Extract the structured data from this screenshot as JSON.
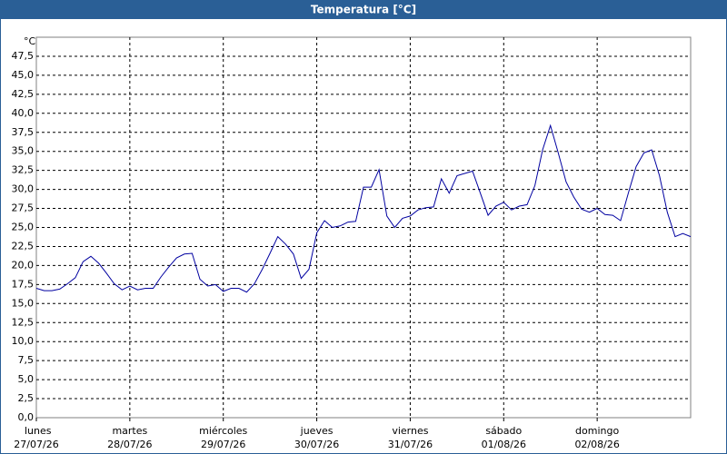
{
  "chart_data": {
    "type": "line",
    "title": "Temperatura [°C]",
    "y_unit": "°C",
    "ylim": [
      0,
      50
    ],
    "yticks": [
      {
        "value": 0,
        "label": "0,0"
      },
      {
        "value": 2.5,
        "label": "2,5"
      },
      {
        "value": 5,
        "label": "5,0"
      },
      {
        "value": 7.5,
        "label": "7,5"
      },
      {
        "value": 10,
        "label": "10,0"
      },
      {
        "value": 12.5,
        "label": "12,5"
      },
      {
        "value": 15,
        "label": "15,0"
      },
      {
        "value": 17.5,
        "label": "17,5"
      },
      {
        "value": 20,
        "label": "20,0"
      },
      {
        "value": 22.5,
        "label": "22,5"
      },
      {
        "value": 25,
        "label": "25,0"
      },
      {
        "value": 27.5,
        "label": "27,5"
      },
      {
        "value": 30,
        "label": "30,0"
      },
      {
        "value": 32.5,
        "label": "32,5"
      },
      {
        "value": 35,
        "label": "35,0"
      },
      {
        "value": 37.5,
        "label": "37,5"
      },
      {
        "value": 40,
        "label": "40,0"
      },
      {
        "value": 42.5,
        "label": "42,5"
      },
      {
        "value": 45,
        "label": "45,0"
      },
      {
        "value": 47.5,
        "label": "47,5"
      }
    ],
    "xticks": [
      {
        "day": "lunes",
        "date": "27/07/26"
      },
      {
        "day": "martes",
        "date": "28/07/26"
      },
      {
        "day": "miércoles",
        "date": "29/07/26"
      },
      {
        "day": "jueves",
        "date": "30/07/26"
      },
      {
        "day": "viernes",
        "date": "31/07/26"
      },
      {
        "day": "sábado",
        "date": "01/08/26"
      },
      {
        "day": "domingo",
        "date": "02/08/26"
      }
    ],
    "grid": true,
    "series": [
      {
        "name": "Temperatura",
        "color": "#0000a0",
        "values": [
          17.0,
          16.7,
          16.7,
          16.9,
          17.6,
          18.4,
          20.5,
          21.2,
          20.3,
          19.0,
          17.6,
          16.8,
          17.3,
          16.8,
          17.0,
          17.0,
          18.5,
          19.8,
          21.0,
          21.5,
          21.6,
          18.2,
          17.3,
          17.5,
          16.6,
          17.0,
          17.0,
          16.5,
          17.6,
          19.5,
          21.6,
          23.8,
          22.8,
          21.5,
          18.3,
          19.5,
          24.3,
          25.9,
          25.0,
          25.2,
          25.7,
          25.8,
          30.3,
          30.3,
          32.6,
          26.5,
          25.0,
          26.2,
          26.5,
          27.3,
          27.6,
          27.7,
          31.4,
          29.5,
          31.8,
          32.1,
          32.4,
          29.5,
          26.6,
          27.8,
          28.3,
          27.3,
          27.8,
          28.0,
          30.5,
          35.2,
          38.4,
          34.8,
          31.0,
          29.0,
          27.4,
          27.0,
          27.5,
          26.7,
          26.6,
          25.9,
          29.5,
          33.0,
          34.8,
          35.2,
          31.8,
          27.0,
          23.8,
          24.2,
          23.8
        ]
      }
    ]
  }
}
